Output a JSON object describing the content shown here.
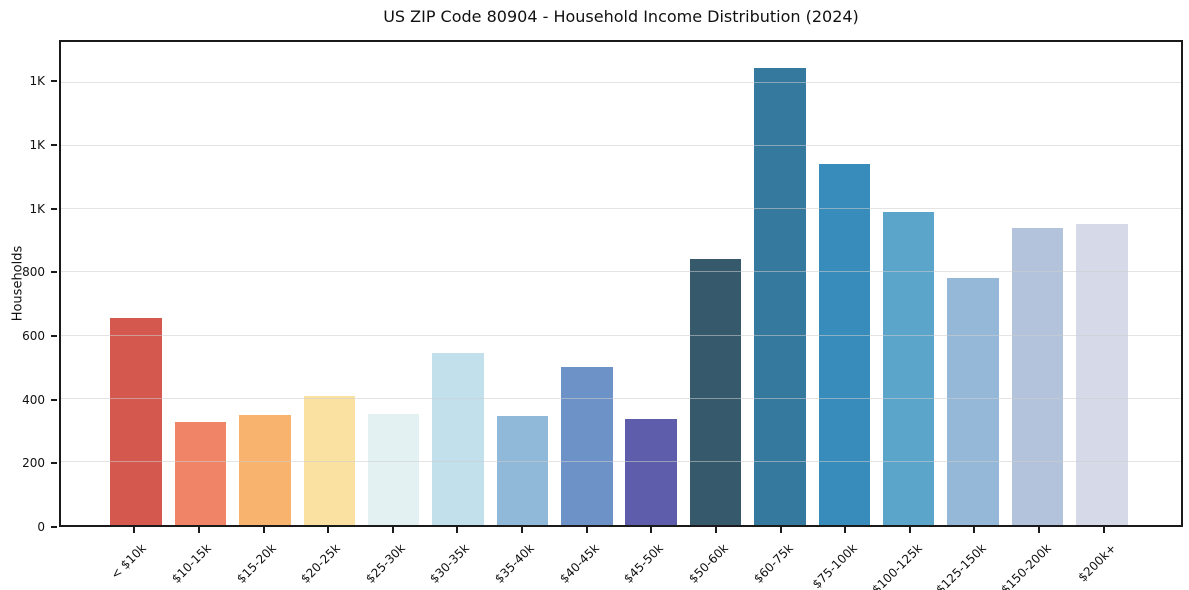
{
  "title": "US ZIP Code 80904 - Household Income Distribution (2024)",
  "chart_data": {
    "type": "bar",
    "title": "US ZIP Code 80904 - Household Income Distribution (2024)",
    "xlabel": "",
    "ylabel": "Households",
    "categories": [
      "< $10k",
      "$10-15k",
      "$15-20k",
      "$20-25k",
      "$25-30k",
      "$30-35k",
      "$35-40k",
      "$40-45k",
      "$45-50k",
      "$50-60k",
      "$60-75k",
      "$75-100k",
      "$100-125k",
      "$125-150k",
      "$150-200k",
      "$200k+"
    ],
    "values": [
      655,
      326,
      349,
      408,
      353,
      544,
      345,
      499,
      336,
      844,
      1447,
      1145,
      990,
      782,
      940,
      955
    ],
    "bar_colors": [
      "#d5584f",
      "#f08466",
      "#f8b46e",
      "#fbe1a1",
      "#e4f1f3",
      "#c1e0ec",
      "#90b8d9",
      "#6d92c7",
      "#5d5dac",
      "#36596b",
      "#35799e",
      "#378cbb",
      "#5ba4ca",
      "#95b8d8",
      "#b3c3dc",
      "#d6dae8"
    ],
    "ylim": [
      0,
      1530
    ],
    "yticks": [
      {
        "value": 0,
        "label": "0"
      },
      {
        "value": 200,
        "label": "200"
      },
      {
        "value": 400,
        "label": "400"
      },
      {
        "value": 600,
        "label": "600"
      },
      {
        "value": 800,
        "label": "800"
      },
      {
        "value": 1000,
        "label": "1K"
      },
      {
        "value": 1200,
        "label": "1K"
      },
      {
        "value": 1400,
        "label": "1K"
      }
    ],
    "grid": "horizontal",
    "legend_position": "none"
  },
  "colors": {
    "background": "#ffffff",
    "grid_line": "#cdcdcd",
    "axis_spine": "#1a1a1a",
    "text": "#111111"
  }
}
